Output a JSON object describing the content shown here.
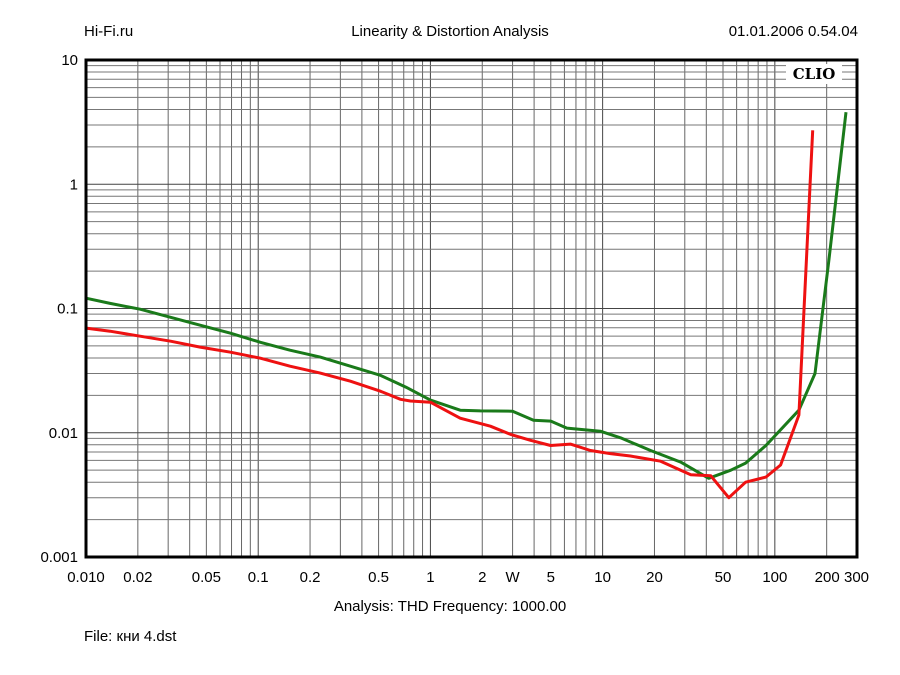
{
  "header": {
    "left": "Hi-Fi.ru",
    "center": "Linearity & Distortion Analysis",
    "right": "01.01.2006 0.54.04"
  },
  "footer": {
    "analysis": "Analysis: THD   Frequency: 1000.00",
    "file": "File: кни 4.dst"
  },
  "chart_data": {
    "type": "line",
    "title": "Linearity & Distortion Analysis",
    "watermark": "CLIO",
    "xlabel": "W",
    "ylabel": "",
    "xscale": "log",
    "yscale": "log",
    "xlim": [
      0.01,
      300
    ],
    "ylim": [
      0.001,
      10
    ],
    "grid": true,
    "x_ticks": [
      {
        "v": 0.01,
        "label": "0.010"
      },
      {
        "v": 0.02,
        "label": "0.02"
      },
      {
        "v": 0.05,
        "label": "0.05"
      },
      {
        "v": 0.1,
        "label": "0.1"
      },
      {
        "v": 0.2,
        "label": "0.2"
      },
      {
        "v": 0.5,
        "label": "0.5"
      },
      {
        "v": 1,
        "label": "1"
      },
      {
        "v": 2,
        "label": "2"
      },
      {
        "v": 3,
        "label": "W"
      },
      {
        "v": 5,
        "label": "5"
      },
      {
        "v": 10,
        "label": "10"
      },
      {
        "v": 20,
        "label": "20"
      },
      {
        "v": 50,
        "label": "50"
      },
      {
        "v": 100,
        "label": "100"
      },
      {
        "v": 200,
        "label": "200"
      },
      {
        "v": 300,
        "label": "300"
      }
    ],
    "y_ticks": [
      {
        "v": 10,
        "label": "10"
      },
      {
        "v": 1,
        "label": "1"
      },
      {
        "v": 0.1,
        "label": "0.1"
      },
      {
        "v": 0.01,
        "label": "0.01"
      },
      {
        "v": 0.001,
        "label": "0.001"
      }
    ],
    "series": [
      {
        "name": "green",
        "color": "#1a7a1a",
        "x": [
          0.01,
          0.0138,
          0.0206,
          0.031,
          0.046,
          0.069,
          0.103,
          0.153,
          0.229,
          0.343,
          0.512,
          0.72,
          1.0,
          1.49,
          1.95,
          3.0,
          3.97,
          5.0,
          6.2,
          9.7,
          12.7,
          19,
          28.4,
          41.3,
          55.5,
          67.6,
          88.7,
          138,
          171,
          206,
          259
        ],
        "y": [
          0.121,
          0.11,
          0.0987,
          0.085,
          0.0734,
          0.0633,
          0.0535,
          0.0462,
          0.0406,
          0.0343,
          0.029,
          0.0233,
          0.0183,
          0.0152,
          0.015,
          0.0149,
          0.0126,
          0.0124,
          0.0109,
          0.0103,
          0.0091,
          0.0072,
          0.0058,
          0.0043,
          0.005,
          0.0057,
          0.0079,
          0.0152,
          0.03,
          0.245,
          3.8
        ]
      },
      {
        "name": "red",
        "color": "#ee1111",
        "x": [
          0.01,
          0.0138,
          0.0206,
          0.031,
          0.046,
          0.069,
          0.103,
          0.153,
          0.229,
          0.343,
          0.512,
          0.67,
          0.765,
          1.0,
          1.49,
          2.23,
          2.92,
          3.81,
          4.99,
          6.5,
          8.5,
          11.1,
          14.5,
          21.7,
          32.5,
          42.5,
          54,
          67.6,
          88.7,
          108,
          138,
          166
        ],
        "y": [
          0.0695,
          0.0656,
          0.0598,
          0.0546,
          0.0489,
          0.0445,
          0.0398,
          0.0343,
          0.0302,
          0.026,
          0.0216,
          0.0186,
          0.018,
          0.0176,
          0.0131,
          0.0113,
          0.0097,
          0.0087,
          0.0079,
          0.0081,
          0.0072,
          0.0068,
          0.0065,
          0.0059,
          0.0046,
          0.0045,
          0.003,
          0.004,
          0.0044,
          0.0055,
          0.0139,
          2.72
        ]
      }
    ]
  }
}
